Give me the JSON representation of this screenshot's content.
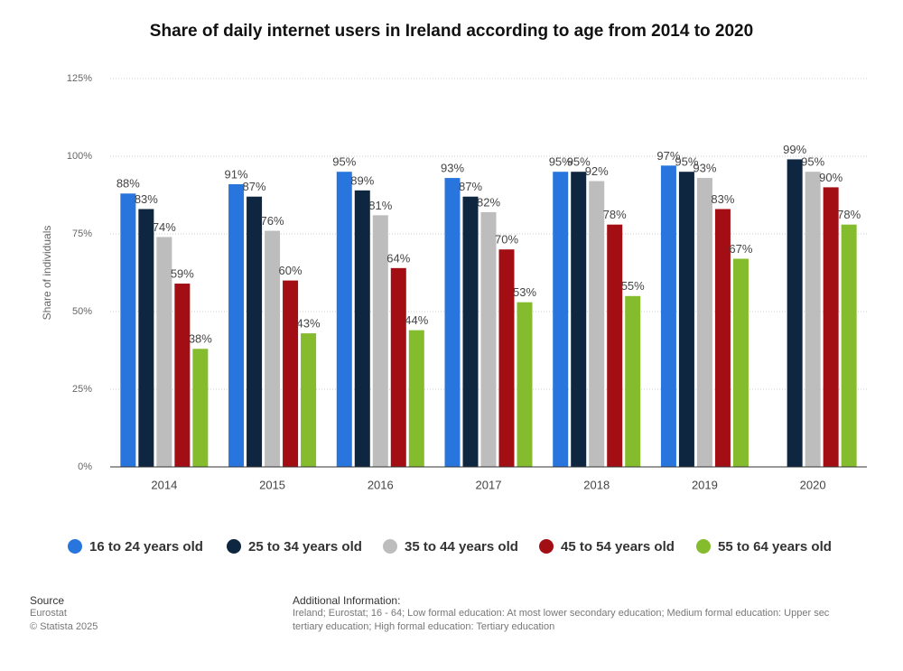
{
  "chart_data": {
    "type": "bar",
    "title": "Share of daily internet users in Ireland according to age from 2014 to 2020",
    "y_label": "Share of individuals",
    "categories": [
      "2014",
      "2015",
      "2016",
      "2017",
      "2018",
      "2019",
      "2020"
    ],
    "series": [
      {
        "name": "16 to 24 years old",
        "color": "#2876dd",
        "values": [
          88,
          91,
          95,
          93,
          95,
          97,
          null
        ],
        "value_labels": [
          "88%",
          "91%",
          "95%",
          "93%",
          "95%",
          "97%",
          null
        ]
      },
      {
        "name": "25 to 34 years old",
        "color": "#0f2640",
        "values": [
          83,
          87,
          89,
          87,
          95,
          95,
          99
        ],
        "value_labels": [
          "83%",
          "87%",
          "89%",
          "87%",
          "95%",
          "95%",
          "99%"
        ]
      },
      {
        "name": "35 to 44 years old",
        "color": "#bdbdbd",
        "values": [
          74,
          76,
          81,
          82,
          92,
          93,
          95
        ],
        "value_labels": [
          "74%",
          "76%",
          "81%",
          "82%",
          "92%",
          "93%",
          "95%"
        ]
      },
      {
        "name": "45 to 54 years old",
        "color": "#a30e15",
        "values": [
          59,
          60,
          64,
          70,
          78,
          83,
          90
        ],
        "value_labels": [
          "59%",
          "60%",
          "64%",
          "70%",
          "78%",
          "83%",
          "90%"
        ]
      },
      {
        "name": "55 to 64 years old",
        "color": "#84bc2d",
        "values": [
          38,
          43,
          44,
          53,
          55,
          67,
          78
        ],
        "value_labels": [
          "38%",
          "43%",
          "44%",
          "53%",
          "55%",
          "67%",
          "78%"
        ]
      }
    ],
    "ylim": [
      0,
      125
    ],
    "yticks": [
      {
        "value": 0,
        "label": "0%"
      },
      {
        "value": 25,
        "label": "25%"
      },
      {
        "value": 50,
        "label": "50%"
      },
      {
        "value": 75,
        "label": "75%"
      },
      {
        "value": 100,
        "label": "100%"
      },
      {
        "value": 125,
        "label": "125%"
      }
    ],
    "grid": true,
    "legend": "bottom"
  },
  "footer": {
    "source_title": "Source",
    "source": "Eurostat",
    "copyright": "© Statista 2025",
    "info_title": "Additional Information:",
    "info_lines": [
      "Ireland; Eurostat; 16 - 64; Low formal education: At most lower secondary education; Medium formal education: Upper sec",
      "tertiary education; High formal education: Tertiary education"
    ]
  }
}
